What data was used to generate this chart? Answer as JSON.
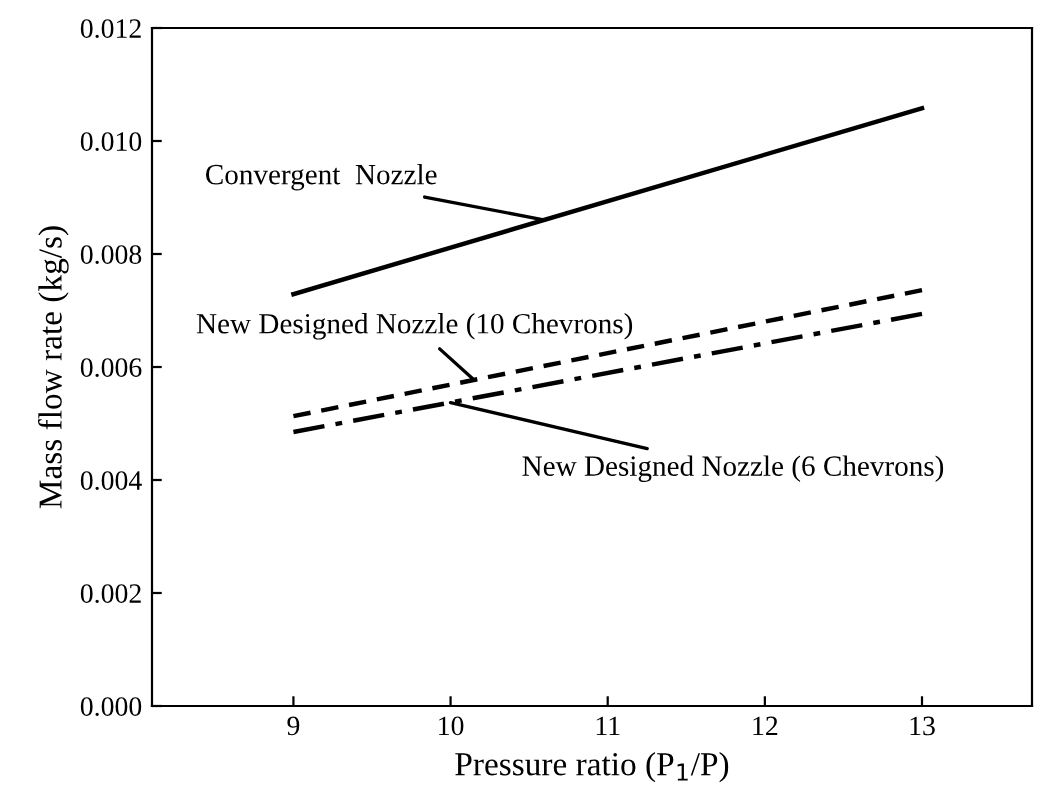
{
  "chart_data": {
    "type": "line",
    "xlabel": "Pressure ratio (P$_{1}$/P)",
    "ylabel": "Mass flow rate (kg/s)",
    "xlim": [
      8.1,
      13.7
    ],
    "xticks": [
      9,
      10,
      11,
      12,
      13
    ],
    "ylim": [
      0,
      0.012
    ],
    "yticks": [
      {
        "value": 0,
        "label": "0.000"
      },
      {
        "value": 0.002,
        "label": "0.002"
      },
      {
        "value": 0.004,
        "label": "0.004"
      },
      {
        "value": 0.006,
        "label": "0.006"
      },
      {
        "value": 0.008,
        "label": "0.008"
      },
      {
        "value": 0.01,
        "label": "0.010"
      },
      {
        "value": 0.012,
        "label": "0.012"
      }
    ],
    "grid": false,
    "marker": "none",
    "x": [
      9,
      13
    ],
    "series": [
      {
        "color": "#000000",
        "line_style": "solid",
        "values": [
          0.00729,
          0.01058
        ]
      },
      {
        "color": "#000000",
        "line_style": "dashed",
        "values": [
          0.00513,
          0.00736
        ]
      },
      {
        "color": "#000000",
        "line_style": "dashdot",
        "values": [
          0.00485,
          0.00694
        ]
      }
    ],
    "annotations": [
      {
        "text": "Convergent  Nozzle",
        "x": 10.6,
        "y": 0.0086
      },
      {
        "text": "New Designed Nozzle (10 Chevrons)",
        "x": 10.15,
        "y": 0.00577
      },
      {
        "text": "New Designed Nozzle (6 Chevrons)",
        "x": 10.0,
        "y": 0.00537
      }
    ]
  }
}
